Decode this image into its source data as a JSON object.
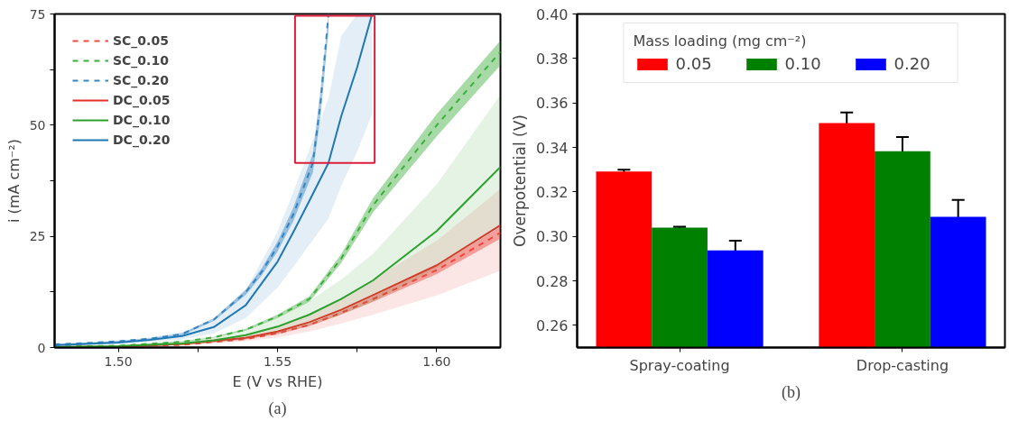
{
  "chart_data": [
    {
      "type": "line",
      "xlabel": "E (V vs RHE)",
      "ylabel": "i (mA cm⁻²)",
      "xlim": [
        1.48,
        1.62
      ],
      "ylim": [
        0,
        75
      ],
      "xticks": [
        {
          "value": 1.5,
          "label": "1.50"
        },
        {
          "value": 1.525,
          "label": null
        },
        1.55,
        {
          "value": 1.575,
          "label": null
        },
        {
          "value": 1.6,
          "label": "1.60"
        }
      ],
      "yticks": [
        0,
        {
          "value": 12.5,
          "label": null
        },
        25,
        {
          "value": 37.5,
          "label": null
        },
        50,
        {
          "value": 62.5,
          "label": null
        },
        75
      ],
      "grid": false,
      "legend": "top left",
      "marker": "none",
      "annotations": [
        "(a)"
      ],
      "series": [
        {
          "name": "SC_0.05",
          "color": "#ee4a40",
          "line_style": "dashed",
          "x": [
            1.48,
            1.5,
            1.52,
            1.54,
            1.55,
            1.56,
            1.57,
            1.58,
            1.6,
            1.62
          ],
          "values": [
            0.1,
            0.2,
            0.6,
            1.9,
            3.2,
            5.1,
            7.8,
            10.9,
            17.4,
            25.8
          ],
          "lower": [
            0.1,
            0.2,
            0.55,
            1.8,
            3.0,
            4.8,
            7.4,
            10.3,
            16.5,
            24.5
          ],
          "upper": [
            0.1,
            0.2,
            0.65,
            2.0,
            3.4,
            5.4,
            8.2,
            11.5,
            18.3,
            27.1
          ]
        },
        {
          "name": "SC_0.10",
          "color": "#3cae3c",
          "line_style": "dashed",
          "x": [
            1.48,
            1.5,
            1.52,
            1.53,
            1.54,
            1.55,
            1.56,
            1.57,
            1.58,
            1.6,
            1.62
          ],
          "values": [
            0.2,
            0.4,
            1.3,
            2.3,
            4.0,
            7.0,
            10.9,
            20,
            32,
            50,
            66.5
          ],
          "lower": [
            0.2,
            0.35,
            1.2,
            2.2,
            3.8,
            6.6,
            10.3,
            19,
            30.4,
            47.5,
            63.5
          ],
          "upper": [
            0.2,
            0.45,
            1.4,
            2.4,
            4.2,
            7.4,
            11.5,
            21,
            33.6,
            52.5,
            69
          ]
        },
        {
          "name": "SC_0.20",
          "color": "#3586c4",
          "line_style": "dashed",
          "x": [
            1.48,
            1.49,
            1.5,
            1.51,
            1.52,
            1.53,
            1.54,
            1.545,
            1.55,
            1.555,
            1.5611,
            1.5635,
            1.566
          ],
          "values": [
            0.7,
            1.0,
            1.4,
            2.0,
            3.0,
            6.3,
            12.4,
            17,
            22.7,
            30,
            41.5,
            55,
            75
          ],
          "lower": [
            0.6,
            0.9,
            1.3,
            1.9,
            2.8,
            6.0,
            11.8,
            16.2,
            21.6,
            28.5,
            39.4,
            52,
            71
          ],
          "upper": [
            0.8,
            1.1,
            1.5,
            2.1,
            3.2,
            6.6,
            13,
            17.8,
            23.8,
            31.5,
            43.6,
            58,
            75
          ]
        },
        {
          "name": "DC_0.05",
          "color": "#e8302a",
          "line_style": "solid",
          "x": [
            1.48,
            1.5,
            1.52,
            1.54,
            1.55,
            1.56,
            1.57,
            1.58,
            1.6,
            1.62
          ],
          "values": [
            0.1,
            0.2,
            0.8,
            2.2,
            3.6,
            5.7,
            8.5,
            11.8,
            18.5,
            27.5
          ],
          "lower": [
            0.1,
            0.15,
            0.5,
            1.4,
            2.3,
            3.6,
            5.4,
            7.4,
            11.7,
            17.3
          ],
          "upper": [
            0.1,
            0.3,
            1.0,
            2.9,
            4.7,
            7.4,
            11,
            15.3,
            24,
            35.7
          ]
        },
        {
          "name": "DC_0.10",
          "color": "#2ca02c",
          "line_style": "solid",
          "x": [
            1.48,
            1.5,
            1.52,
            1.53,
            1.54,
            1.55,
            1.56,
            1.57,
            1.58,
            1.6,
            1.62
          ],
          "values": [
            0.1,
            0.3,
            0.9,
            1.6,
            2.8,
            4.7,
            7.4,
            10.9,
            15.1,
            26.2,
            40.6
          ],
          "lower": [
            0.1,
            0.2,
            0.6,
            1.1,
            1.9,
            3.2,
            5.0,
            7.4,
            10.3,
            17.8,
            27.6
          ],
          "upper": [
            0.1,
            0.4,
            1.3,
            2.2,
            3.9,
            6.6,
            10.4,
            15.3,
            21.1,
            36.7,
            56.8
          ]
        },
        {
          "name": "DC_0.20",
          "color": "#1f77b4",
          "line_style": "solid",
          "x": [
            1.48,
            1.49,
            1.5,
            1.51,
            1.52,
            1.53,
            1.54,
            1.55,
            1.555,
            1.56,
            1.566,
            1.57,
            1.575,
            1.5797
          ],
          "values": [
            0.5,
            0.8,
            1.1,
            1.7,
            2.6,
            4.6,
            9.5,
            19.3,
            26,
            33,
            41.5,
            52,
            63,
            75
          ],
          "lower": [
            0.4,
            0.6,
            0.8,
            1.2,
            1.8,
            3.2,
            6.6,
            13.5,
            18.2,
            23.1,
            29,
            36.4,
            44,
            52.5
          ],
          "upper": [
            0.7,
            1.1,
            1.5,
            2.3,
            3.5,
            6.2,
            12.8,
            26,
            35,
            44.5,
            56,
            70,
            75,
            75
          ]
        }
      ]
    },
    {
      "type": "bar",
      "categories": [
        "Spray-coating",
        "Drop-casting"
      ],
      "ylabel": "Overpotential (V)",
      "ylim": [
        0.25,
        0.4
      ],
      "yticks": [
        0.26,
        0.28,
        {
          "value": 0.3,
          "label": "0.30"
        },
        0.32,
        0.34,
        0.36,
        0.38,
        {
          "value": 0.4,
          "label": "0.40"
        }
      ],
      "grid": false,
      "legend": "top",
      "legend_title": "Mass loading (mg cm⁻²)",
      "annotations": [
        "(b)"
      ],
      "series": [
        {
          "name": "0.05",
          "color": "#ff0000",
          "values": [
            0.3292,
            0.3509
          ],
          "errors": [
            0.0008,
            0.0048
          ]
        },
        {
          "name": "0.10",
          "color": "#008000",
          "values": [
            0.3039,
            0.3383
          ],
          "errors": [
            0.0004,
            0.0064
          ]
        },
        {
          "name": "0.20",
          "color": "#0000ff",
          "values": [
            0.2937,
            0.3088
          ],
          "errors": [
            0.0043,
            0.0076
          ]
        }
      ]
    }
  ]
}
